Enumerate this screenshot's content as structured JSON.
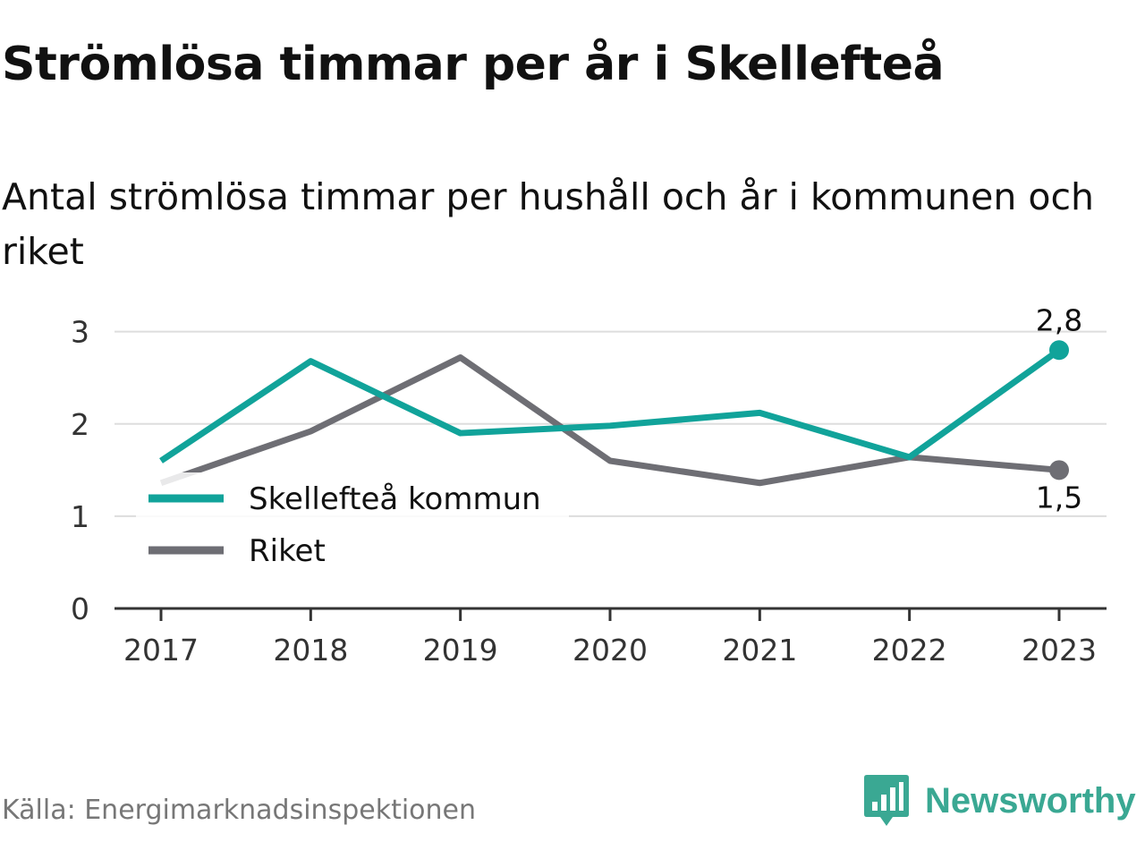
{
  "title": "Strömlösa timmar per år i Skellefteå",
  "subtitle": "Antal strömlösa timmar per hushåll och år i kommunen och riket",
  "source": "Källa: Energimarknadsinspektionen",
  "brand": "Newsworthy",
  "colors": {
    "skelleftea": "#11a39a",
    "riket": "#6e6e74",
    "grid": "#dddddd",
    "axis": "#333333",
    "brand": "#3aa893"
  },
  "chart_data": {
    "type": "line",
    "x": [
      "2017",
      "2018",
      "2019",
      "2020",
      "2021",
      "2022",
      "2023"
    ],
    "series": [
      {
        "name": "Skellefteå kommun",
        "values": [
          1.6,
          2.68,
          1.9,
          1.98,
          2.12,
          1.64,
          2.8
        ]
      },
      {
        "name": "Riket",
        "values": [
          1.36,
          1.92,
          2.72,
          1.6,
          1.36,
          1.64,
          1.5
        ]
      }
    ],
    "end_labels": [
      "2,8",
      "1,5"
    ],
    "yticks": [
      "0",
      "1",
      "2",
      "3"
    ],
    "ylim": [
      0,
      3.2
    ],
    "grid": true,
    "legend_position": "lower-left"
  }
}
